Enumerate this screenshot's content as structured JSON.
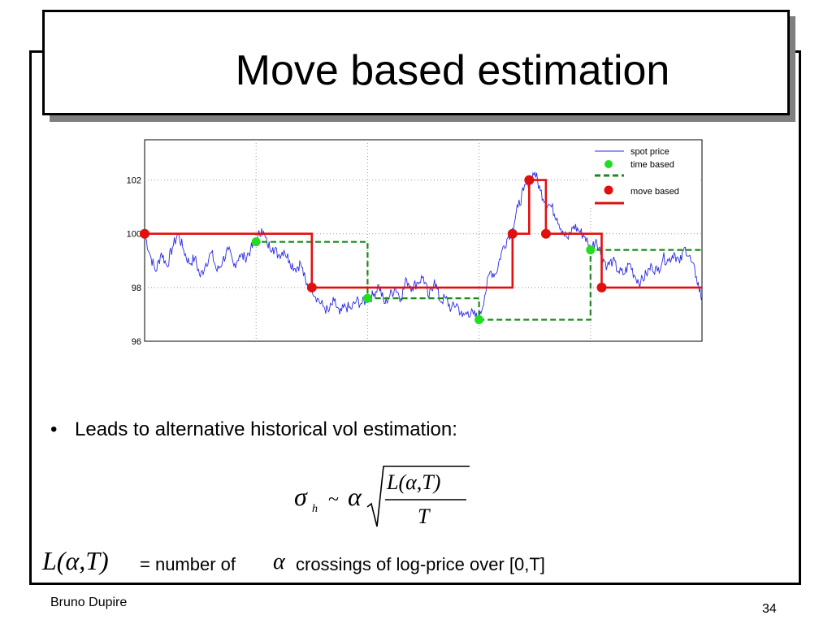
{
  "slide": {
    "title": "Move based estimation",
    "bullet_text": "Leads to alternative historical vol estimation:",
    "bullet_symbol": "•",
    "formula": {
      "sigma": "σ",
      "subscript": "h",
      "tilde": "~",
      "alpha": "α",
      "numerator": "L(α,T)",
      "denominator": "T"
    },
    "definition": {
      "symbol": "L(α,T)",
      "prefix": "= number of",
      "alpha": "α",
      "suffix": "crossings of log-price over [0,T]"
    },
    "footer_author": "Bruno Dupire",
    "page_number": "34"
  },
  "chart_data": {
    "type": "line",
    "title": "",
    "xlabel": "",
    "ylabel": "",
    "xlim": [
      0,
      100
    ],
    "ylim": [
      96,
      103.5
    ],
    "yticks": [
      "96",
      "98",
      "100",
      "102"
    ],
    "ytick_values": [
      96,
      98,
      100,
      102
    ],
    "xgrid": [
      0,
      20,
      40,
      60,
      80,
      100
    ],
    "grid": true,
    "legend_position": "top-right",
    "legend": [
      "spot price",
      "time based",
      "move based"
    ],
    "colors": {
      "spot": "#2a2ae8",
      "time": "#22dd22",
      "time_line": "#1a8a1a",
      "move": "#e01010"
    },
    "spot_price": {
      "name": "spot price",
      "x": [
        0,
        1,
        2,
        3,
        4,
        5,
        6,
        7,
        8,
        9,
        10,
        11,
        12,
        13,
        14,
        15,
        16,
        17,
        18,
        19,
        20,
        21,
        22,
        23,
        24,
        25,
        26,
        27,
        28,
        29,
        30,
        31,
        32,
        33,
        34,
        35,
        36,
        37,
        38,
        39,
        40,
        41,
        42,
        43,
        44,
        45,
        46,
        47,
        48,
        49,
        50,
        51,
        52,
        53,
        54,
        55,
        56,
        57,
        58,
        59,
        60,
        61,
        62,
        63,
        64,
        65,
        66,
        67,
        68,
        69,
        70,
        71,
        72,
        73,
        74,
        75,
        76,
        77,
        78,
        79,
        80,
        81,
        82,
        83,
        84,
        85,
        86,
        87,
        88,
        89,
        90,
        91,
        92,
        93,
        94,
        95,
        96,
        97,
        98,
        99,
        100
      ],
      "y": [
        100,
        99.2,
        98.6,
        99.3,
        98.8,
        99.5,
        100,
        99.4,
        98.9,
        99.1,
        98.4,
        98.9,
        99.3,
        98.6,
        99.0,
        99.4,
        98.8,
        99.2,
        99.1,
        99.4,
        99.7,
        100.2,
        99.6,
        99.5,
        99.2,
        99.4,
        99.0,
        98.7,
        98.9,
        98.1,
        98.0,
        97.6,
        97.3,
        97.1,
        97.5,
        97.0,
        97.3,
        97.2,
        97.5,
        97.4,
        97.6,
        97.7,
        98.1,
        97.4,
        97.7,
        98.0,
        97.6,
        98.3,
        98.0,
        98.2,
        98.4,
        97.6,
        98.3,
        97.5,
        97.6,
        97.2,
        97.4,
        96.9,
        97.1,
        97.0,
        96.8,
        97.7,
        98.6,
        98.5,
        99.3,
        99.8,
        100.2,
        101.0,
        101.6,
        102.0,
        102.3,
        101.6,
        101.2,
        101.0,
        100.6,
        100.1,
        99.8,
        100.3,
        100.1,
        99.9,
        99.4,
        99.8,
        99.2,
        98.8,
        99.0,
        98.6,
        98.5,
        98.9,
        98.4,
        98.2,
        98.5,
        98.8,
        98.6,
        99.1,
        99.0,
        99.3,
        98.9,
        99.5,
        99.0,
        98.4,
        97.5
      ]
    },
    "time_based": {
      "name": "time based",
      "points": [
        [
          0,
          100
        ],
        [
          20,
          99.7
        ],
        [
          40,
          97.6
        ],
        [
          60,
          96.8
        ],
        [
          80,
          99.4
        ]
      ],
      "step_end": 100
    },
    "move_based": {
      "name": "move based",
      "points": [
        [
          0,
          100
        ],
        [
          30,
          98
        ],
        [
          66,
          100
        ],
        [
          69,
          102
        ],
        [
          72,
          100
        ],
        [
          82,
          98
        ]
      ],
      "step_end": 100
    }
  }
}
